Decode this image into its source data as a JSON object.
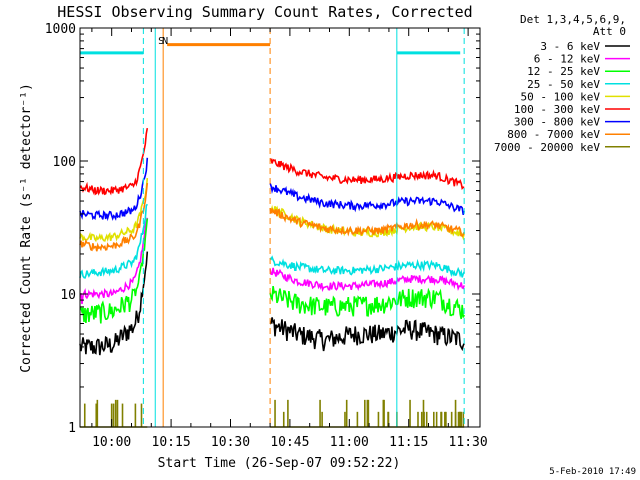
{
  "chart_data": {
    "type": "line",
    "title": "HESSI Observing Summary Count Rates, Corrected",
    "xlabel": "Start Time (26-Sep-07 09:52:22)",
    "ylabel": "Corrected Count Rate (s⁻¹ detector⁻¹)",
    "yscale": "log",
    "ylim": [
      1,
      1000
    ],
    "xlim": [
      "09:52",
      "11:33"
    ],
    "x_ticks": [
      "10:00",
      "10:15",
      "10:30",
      "10:45",
      "11:00",
      "11:15",
      "11:30"
    ],
    "y_ticks": [
      "1",
      "10",
      "100",
      "1000"
    ],
    "legend_title": [
      "Det 1,3,4,5,6,9,",
      "Att 0"
    ],
    "footer": "5-Feb-2010 17:49",
    "flags": [
      {
        "label": "S",
        "time": "10:13",
        "color": "#ff8000"
      },
      {
        "label": "N",
        "time": "10:14",
        "color": "#00e0e0"
      }
    ],
    "bars": [
      {
        "name": "cyan_top_left",
        "from": "09:52",
        "to": "10:08",
        "value": 650,
        "color": "#00e0e0"
      },
      {
        "name": "orange_top",
        "from": "10:14",
        "to": "10:40",
        "value": 750,
        "color": "#ff8000"
      },
      {
        "name": "cyan_top_right",
        "from": "11:12",
        "to": "11:28",
        "value": 650,
        "color": "#00e0e0"
      }
    ],
    "vlines": [
      {
        "time": "10:08",
        "color": "#00e0e0",
        "style": "dashed"
      },
      {
        "time": "10:11",
        "color": "#00e0e0",
        "style": "solid"
      },
      {
        "time": "10:13",
        "color": "#ff8000",
        "style": "solid"
      },
      {
        "time": "10:40",
        "color": "#ff8000",
        "style": "dashed"
      },
      {
        "time": "11:12",
        "color": "#00e0e0",
        "style": "solid"
      },
      {
        "time": "11:29",
        "color": "#00e0e0",
        "style": "dashed"
      }
    ],
    "segments": [
      {
        "from": "09:52",
        "to": "10:09"
      },
      {
        "from": "10:40",
        "to": "11:29"
      }
    ],
    "series": [
      {
        "name": "3 - 6 keV",
        "color": "#000000",
        "seg1": [
          4,
          4,
          4.2,
          5.5,
          20
        ],
        "seg2": [
          6,
          5,
          4.5,
          5,
          5,
          5.5,
          5,
          4.5
        ]
      },
      {
        "name": "6 - 12 keV",
        "color": "#ff00ff",
        "seg1": [
          10,
          10,
          10,
          12,
          40
        ],
        "seg2": [
          15,
          12.5,
          11.5,
          11.5,
          12,
          13,
          13,
          11.5
        ]
      },
      {
        "name": "12 - 25 keV",
        "color": "#00ff00",
        "seg1": [
          7,
          7.2,
          7.5,
          9,
          35
        ],
        "seg2": [
          10,
          8.5,
          8,
          8.2,
          8.5,
          9.5,
          9.5,
          7.5
        ]
      },
      {
        "name": "25 - 50 keV",
        "color": "#00e0e0",
        "seg1": [
          14,
          14.5,
          15,
          17,
          50
        ],
        "seg2": [
          18,
          16,
          15,
          15,
          15.5,
          16.5,
          16.5,
          14
        ]
      },
      {
        "name": "50 - 100 keV",
        "color": "#e0e000",
        "seg1": [
          27,
          26,
          27,
          30,
          70
        ],
        "seg2": [
          45,
          36,
          31,
          29,
          29,
          32,
          32,
          28
        ]
      },
      {
        "name": "100 - 300 keV",
        "color": "#ff0000",
        "seg1": [
          64,
          60,
          60,
          64,
          170
        ],
        "seg2": [
          100,
          84,
          75,
          72,
          73,
          78,
          78,
          65
        ]
      },
      {
        "name": "300 - 800 keV",
        "color": "#0000ff",
        "seg1": [
          40,
          39,
          39,
          42,
          100
        ],
        "seg2": [
          65,
          54,
          48,
          46,
          47,
          50,
          50,
          42
        ]
      },
      {
        "name": "800 - 7000 keV",
        "color": "#ff8000",
        "seg1": [
          24,
          22.5,
          23,
          26,
          65
        ],
        "seg2": [
          43,
          35,
          31,
          30,
          30,
          33,
          33,
          29
        ]
      },
      {
        "name": "7000 - 20000 keV",
        "color": "#808000",
        "seg1": [
          1.5,
          1.5,
          1.5,
          1.5,
          1.6
        ],
        "seg2": [
          1.3,
          1.3,
          1.3,
          1.3,
          1.3,
          1.6,
          1.6,
          1.6
        ]
      }
    ]
  }
}
